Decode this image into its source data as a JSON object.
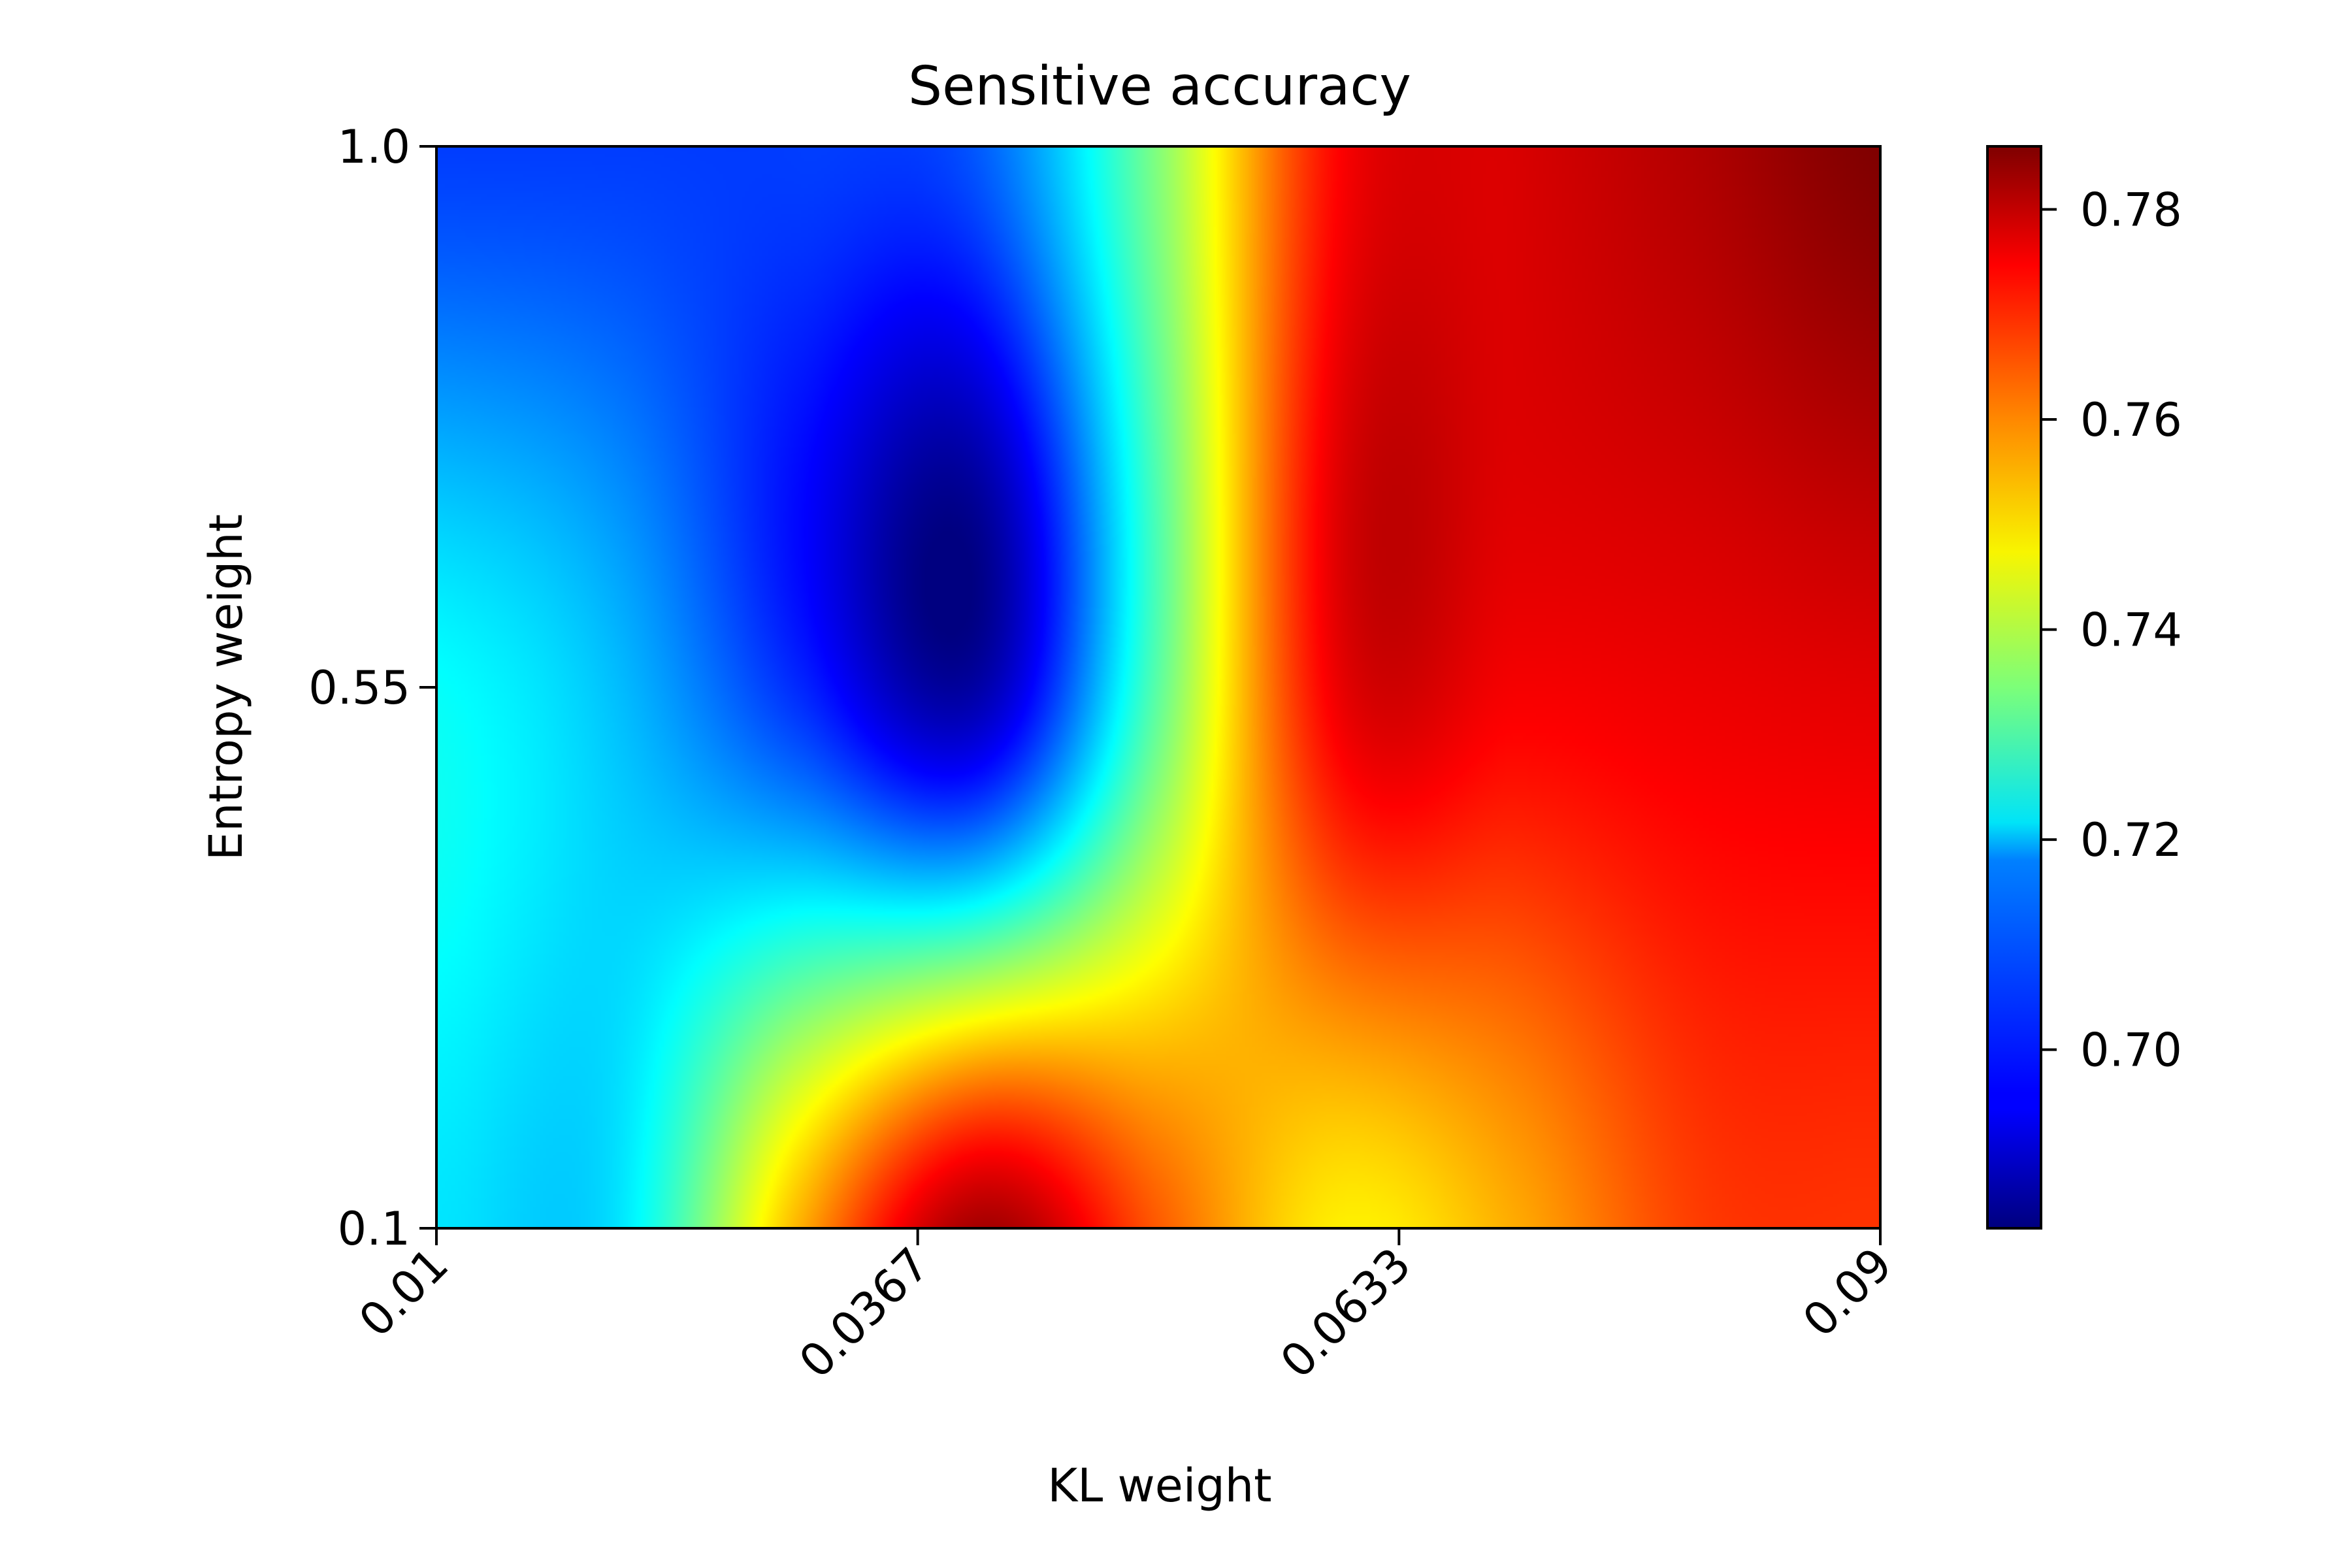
{
  "chart_data": {
    "type": "heatmap",
    "title": "Sensitive accuracy",
    "xlabel": "KL weight",
    "ylabel": "Entropy weight",
    "x": [
      0.01,
      0.02,
      0.03,
      0.04,
      0.05,
      0.06,
      0.07,
      0.08,
      0.09
    ],
    "y": [
      0.1,
      0.55,
      1.0
    ],
    "x_ticks": [
      "0.01",
      "0.0367",
      "0.0633",
      "0.09"
    ],
    "y_ticks": [
      "0.1",
      "0.55",
      "1.0"
    ],
    "z": [
      [
        0.719,
        0.719,
        0.755,
        0.782,
        0.764,
        0.749,
        0.756,
        0.767,
        0.768
      ],
      [
        0.722,
        0.715,
        0.7,
        0.687,
        0.731,
        0.775,
        0.774,
        0.775,
        0.776
      ],
      [
        0.702,
        0.702,
        0.702,
        0.705,
        0.735,
        0.773,
        0.777,
        0.781,
        0.786
      ]
    ],
    "colormap": "jet",
    "colorbar": {
      "min": 0.683,
      "max": 0.786,
      "ticks": [
        0.7,
        0.72,
        0.74,
        0.76,
        0.78
      ],
      "tick_labels": [
        "0.70",
        "0.72",
        "0.74",
        "0.76",
        "0.78"
      ]
    },
    "interpolation": "bicubic"
  }
}
